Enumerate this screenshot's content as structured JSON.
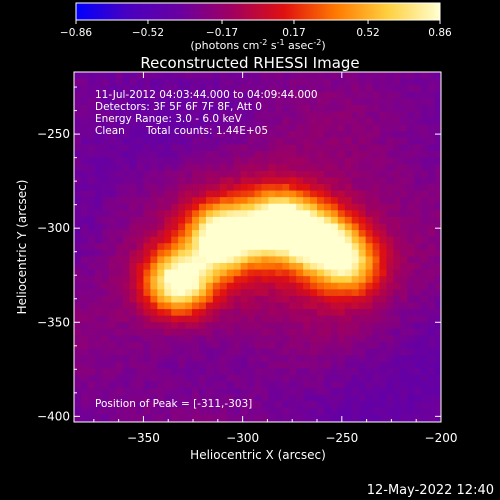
{
  "colorbar": {
    "ticks": [
      "-0.86",
      "-0.52",
      "-0.17",
      "0.17",
      "0.52",
      "0.86"
    ],
    "label_pre": "(photons cm",
    "sup1": "-2",
    "label_mid": " s",
    "sup2": "-1",
    "label_post": " asec",
    "sup3": "-2",
    "label_end": ")",
    "colors": [
      "#0000ff",
      "#4a00c0",
      "#6a00a0",
      "#a00060",
      "#e01010",
      "#ff7a00",
      "#ffd040",
      "#ffffd0"
    ]
  },
  "chart_data": {
    "type": "heatmap",
    "title": "Reconstructed RHESSI Image",
    "xlabel": "Heliocentric X (arcsec)",
    "ylabel": "Heliocentric Y (arcsec)",
    "xlim": [
      -385,
      -200
    ],
    "ylim": [
      -403,
      -217
    ],
    "x_ticks": [
      -350,
      -300,
      -250,
      -200
    ],
    "y_ticks": [
      -400,
      -350,
      -300,
      -250
    ],
    "x_tick_labels": [
      "-350",
      "-300",
      "-250",
      "-200"
    ],
    "y_tick_labels": [
      "-400",
      "-350",
      "-300",
      "-250"
    ],
    "value_range": [
      -0.86,
      0.86
    ],
    "sources": [
      {
        "x": -334,
        "y": -327,
        "peak": 0.8
      },
      {
        "x": -311,
        "y": -303,
        "peak": 0.86
      },
      {
        "x": -283,
        "y": -296,
        "peak": 0.82
      },
      {
        "x": -262,
        "y": -305,
        "peak": 0.62
      },
      {
        "x": -248,
        "y": -318,
        "peak": 0.4
      }
    ],
    "annotations": {
      "line1": "11-Jul-2012 04:03:44.000 to 04:09:44.000",
      "line2": "Detectors: 3F 5F 6F 7F 8F, Att 0",
      "line3": "Energy Range: 3.0 - 6.0 keV",
      "line4_a": "Clean",
      "line4_b": "Total counts: 1.44E+05",
      "peak": "Position of Peak = [-311,-303]"
    }
  },
  "footer": {
    "timestamp": "12-May-2022 12:40"
  }
}
